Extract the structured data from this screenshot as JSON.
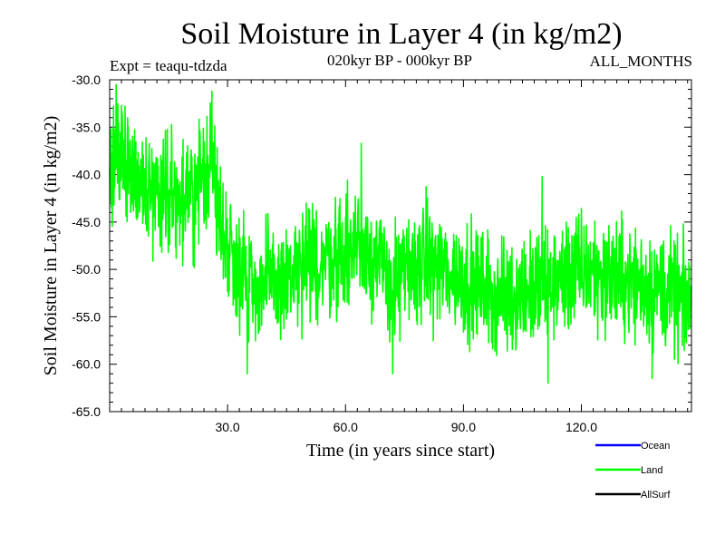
{
  "chart_data": {
    "type": "line",
    "title": "Soil Moisture in Layer 4 (in kg/m2)",
    "subtitle_left": "Expt = teaqu-tdzda",
    "subtitle_center": "020kyr BP - 000kyr BP",
    "subtitle_right": "ALL_MONTHS",
    "xlabel": "Time (in years since start)",
    "ylabel": "Soil Moisture in Layer 4 (in kg/m2)",
    "xlim": [
      0,
      148
    ],
    "ylim": [
      -65,
      -30
    ],
    "x_ticks": [
      {
        "value": 30,
        "label": "30.0"
      },
      {
        "value": 60,
        "label": "60.0"
      },
      {
        "value": 90,
        "label": "90.0"
      },
      {
        "value": 120,
        "label": "120.0"
      }
    ],
    "y_ticks": [
      {
        "value": -30,
        "label": "-30.0"
      },
      {
        "value": -35,
        "label": "-35.0"
      },
      {
        "value": -40,
        "label": "-40.0"
      },
      {
        "value": -45,
        "label": "-45.0"
      },
      {
        "value": -50,
        "label": "-50.0"
      },
      {
        "value": -55,
        "label": "-55.0"
      },
      {
        "value": -60,
        "label": "-60.0"
      },
      {
        "value": -65,
        "label": "-65.0"
      }
    ],
    "x_minor_step": 3,
    "y_minor_step": 1,
    "samples_per_year": 12,
    "series": [
      {
        "name": "Land",
        "color": "#00ff00",
        "noise_amplitude": 3.0,
        "trend": [
          {
            "x": 0,
            "y": -42
          },
          {
            "x": 2,
            "y": -37
          },
          {
            "x": 5,
            "y": -39
          },
          {
            "x": 10,
            "y": -42
          },
          {
            "x": 15,
            "y": -41
          },
          {
            "x": 18,
            "y": -43
          },
          {
            "x": 22,
            "y": -42
          },
          {
            "x": 26,
            "y": -38
          },
          {
            "x": 28,
            "y": -45
          },
          {
            "x": 32,
            "y": -49
          },
          {
            "x": 38,
            "y": -52
          },
          {
            "x": 45,
            "y": -51
          },
          {
            "x": 55,
            "y": -49
          },
          {
            "x": 65,
            "y": -47
          },
          {
            "x": 72,
            "y": -52
          },
          {
            "x": 80,
            "y": -49
          },
          {
            "x": 90,
            "y": -51
          },
          {
            "x": 100,
            "y": -53
          },
          {
            "x": 110,
            "y": -52
          },
          {
            "x": 120,
            "y": -50
          },
          {
            "x": 130,
            "y": -51
          },
          {
            "x": 140,
            "y": -52
          },
          {
            "x": 148,
            "y": -54
          }
        ],
        "extremes": [
          {
            "x": 1.7,
            "y": -30.5
          },
          {
            "x": 26.0,
            "y": -31.2
          },
          {
            "x": 64.0,
            "y": -36.7
          },
          {
            "x": 35.0,
            "y": -61.0
          },
          {
            "x": 72.0,
            "y": -61.0
          },
          {
            "x": 110.0,
            "y": -40.2
          },
          {
            "x": 111.5,
            "y": -62.0
          },
          {
            "x": 138.0,
            "y": -61.5
          }
        ]
      }
    ],
    "legend": {
      "position": "bottom-right",
      "entries": [
        {
          "name": "Ocean",
          "color": "#0000ff"
        },
        {
          "name": "Land",
          "color": "#00ff00"
        },
        {
          "name": "AllSurf",
          "color": "#000000"
        }
      ]
    }
  }
}
